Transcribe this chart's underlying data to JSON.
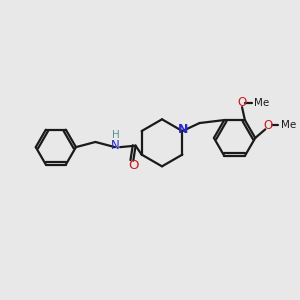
{
  "bg_color": "#e8e8e8",
  "bond_color": "#1a1a1a",
  "N_color": "#2828cc",
  "O_color": "#cc1a1a",
  "line_width": 1.6,
  "font_size_atom": 8.5,
  "font_size_label": 7.5,
  "xlim": [
    0,
    10
  ],
  "ylim": [
    0,
    10
  ]
}
